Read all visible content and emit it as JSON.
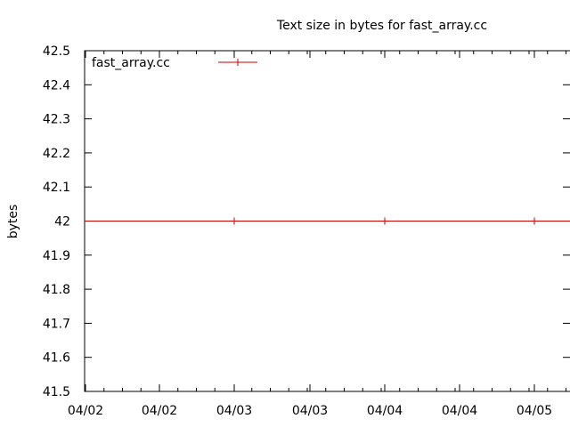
{
  "chart_data": {
    "type": "line",
    "title": "Text size in bytes for fast_array.cc",
    "xlabel": "",
    "ylabel": "bytes",
    "ylim": [
      41.5,
      42.5
    ],
    "yticks": [
      "41.5",
      "41.6",
      "41.7",
      "41.8",
      "41.9",
      "42",
      "42.1",
      "42.2",
      "42.3",
      "42.4",
      "42.5"
    ],
    "xticks": [
      "04/02",
      "04/02",
      "04/03",
      "04/03",
      "04/04",
      "04/04",
      "04/05"
    ],
    "grid": false,
    "legend_position": "top-left",
    "series": [
      {
        "name": "fast_array.cc",
        "color": "#cc0000",
        "marker": "plus",
        "points": [
          {
            "x": "04/03",
            "y": 42
          },
          {
            "x": "04/04",
            "y": 42
          },
          {
            "x": "04/05",
            "y": 42
          }
        ]
      }
    ]
  }
}
